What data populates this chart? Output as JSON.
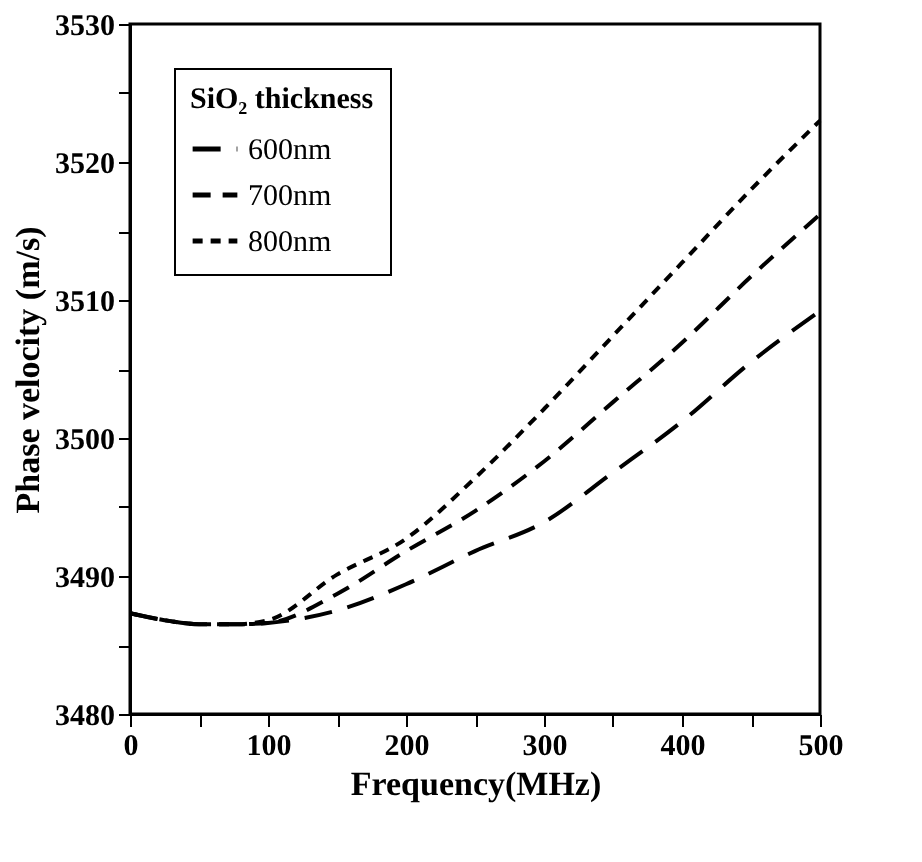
{
  "chart_data": {
    "type": "line",
    "xlabel": "Frequency(MHz)",
    "ylabel": "Phase velocity (m/s)",
    "legend_title": "SiO₂ thickness",
    "x": [
      0,
      25,
      50,
      75,
      100,
      150,
      200,
      250,
      300,
      350,
      400,
      450,
      500
    ],
    "series": [
      {
        "name": "600nm",
        "color": "#000000",
        "line_style": "dashed",
        "values": [
          3487.3,
          3486.8,
          3486.5,
          3486.5,
          3486.6,
          3487.5,
          3489.4,
          3491.8,
          3493.9,
          3497.5,
          3501.2,
          3505.5,
          3509.2
        ]
      },
      {
        "name": "700nm",
        "color": "#000000",
        "line_style": "dashed",
        "values": [
          3487.3,
          3486.8,
          3486.5,
          3486.5,
          3486.6,
          3488.7,
          3491.8,
          3494.7,
          3498.3,
          3502.6,
          3506.9,
          3511.7,
          3516.2
        ]
      },
      {
        "name": "800nm",
        "color": "#000000",
        "line_style": "dotted",
        "values": [
          3487.3,
          3486.8,
          3486.5,
          3486.5,
          3486.8,
          3490.1,
          3492.7,
          3497.1,
          3502.1,
          3507.4,
          3512.7,
          3518.0,
          3523.0
        ]
      }
    ],
    "xlim": [
      0,
      500
    ],
    "xticks": [
      0,
      {
        "value": 50,
        "label": null
      },
      100,
      {
        "value": 150,
        "label": null
      },
      200,
      {
        "value": 250,
        "label": null
      },
      300,
      {
        "value": 350,
        "label": null
      },
      400,
      {
        "value": 450,
        "label": null
      },
      500
    ],
    "ylim": [
      3480,
      3530
    ],
    "yticks": [
      3480,
      {
        "value": 3485,
        "label": null
      },
      3490,
      {
        "value": 3495,
        "label": null
      },
      3500,
      {
        "value": 3505,
        "label": null
      },
      3510,
      {
        "value": 3515,
        "label": null
      },
      3520,
      {
        "value": 3525,
        "label": null
      },
      3530
    ],
    "grid": false,
    "legend": "top left",
    "marker": "none"
  }
}
